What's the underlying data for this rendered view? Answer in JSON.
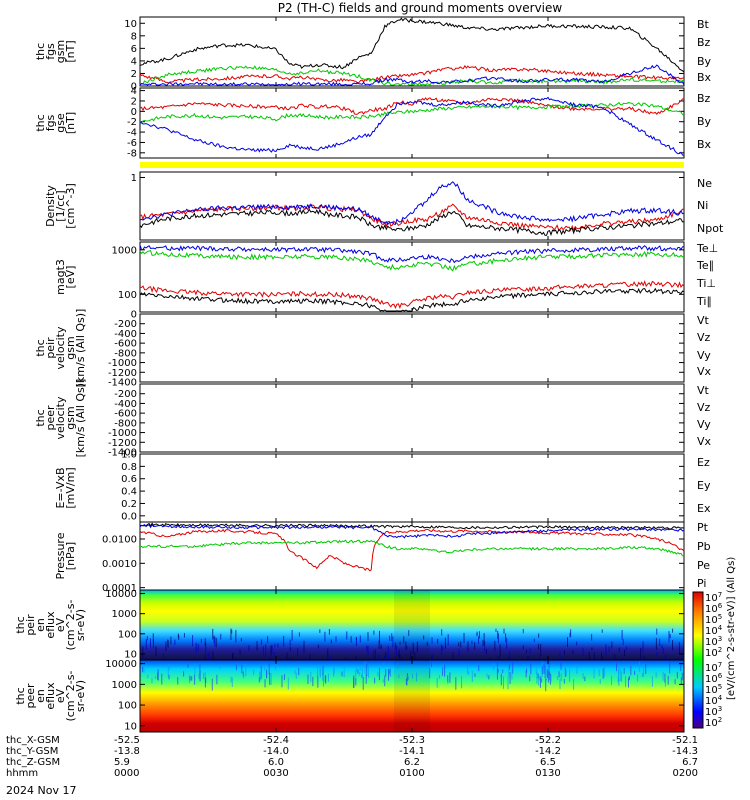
{
  "title": "P2 (TH-C) fields and ground moments overview",
  "date_label": "2024 Nov 17",
  "colors": {
    "black": "#000000",
    "red": "#e00000",
    "green": "#00c800",
    "blue": "#0000e0",
    "yellow": "#ffff00"
  },
  "chart_data": [
    {
      "id": "fgs",
      "type": "line",
      "ylabel_lines": [
        "thc",
        "fgs",
        "gsm",
        "[nT]"
      ],
      "ylim": [
        0,
        11
      ],
      "y_ticks": [
        "10",
        "8",
        "6",
        "4",
        "2",
        "0"
      ],
      "y_tick_values": [
        10,
        8,
        6,
        4,
        2,
        0
      ],
      "x_hours": [
        0,
        0.1,
        0.2,
        0.3,
        0.4,
        0.5,
        0.55,
        0.6,
        0.65,
        0.7,
        0.75,
        0.8,
        0.85,
        0.9,
        0.95,
        1.0,
        1.05,
        1.1,
        1.2,
        1.3,
        1.4,
        1.5,
        1.6,
        1.7,
        1.8,
        1.9,
        2.0
      ],
      "series": [
        {
          "name": "Bt",
          "color": "black",
          "values": [
            3.5,
            4.3,
            5.8,
            6.5,
            6.5,
            5.8,
            3.5,
            3.0,
            3.4,
            3.2,
            3.0,
            4.5,
            5.2,
            9.5,
            10.6,
            10.4,
            10.2,
            10.0,
            9.3,
            9.0,
            9.3,
            9.6,
            9.5,
            9.4,
            9.2,
            6.0,
            2.3
          ]
        },
        {
          "name": "Bz",
          "color": "red",
          "values": [
            1.8,
            0.7,
            1.0,
            1.2,
            1.5,
            1.6,
            1.2,
            1.4,
            1.0,
            0.9,
            1.0,
            0.6,
            1.0,
            1.4,
            1.6,
            1.8,
            2.0,
            2.6,
            3.0,
            2.5,
            2.7,
            2.4,
            2.0,
            1.8,
            1.5,
            1.3,
            1.2
          ]
        },
        {
          "name": "By",
          "color": "green",
          "values": [
            0.3,
            1.8,
            2.3,
            2.8,
            3.0,
            2.5,
            2.0,
            2.0,
            2.5,
            2.2,
            2.0,
            1.6,
            1.0,
            0.4,
            0.2,
            0.3,
            0.3,
            0.4,
            0.8,
            0.5,
            0.9,
            0.7,
            0.8,
            0.6,
            1.0,
            0.8,
            0.7
          ]
        },
        {
          "name": "Bx",
          "color": "blue",
          "values": [
            0.2,
            0.3,
            0.4,
            0.2,
            0.3,
            0.2,
            0.2,
            0.4,
            0.3,
            0.3,
            0.2,
            0.3,
            0.4,
            1.0,
            1.0,
            0.6,
            0.8,
            0.6,
            0.8,
            1.3,
            0.7,
            1.0,
            1.0,
            0.6,
            2.0,
            3.2,
            0.2
          ]
        }
      ],
      "legend": [
        "Bt",
        "Bz",
        "By",
        "Bx"
      ]
    },
    {
      "id": "fgs_gse",
      "type": "line",
      "ylabel_lines": [
        "thc",
        "fgs",
        "gse",
        "[nT]"
      ],
      "ylim": [
        -9,
        4.5
      ],
      "y_ticks": [
        "4",
        "2",
        "0",
        "-2",
        "-4",
        "-6",
        "-8"
      ],
      "y_tick_values": [
        4,
        2,
        0,
        -2,
        -4,
        -6,
        -8
      ],
      "x_hours": [
        0,
        0.1,
        0.2,
        0.3,
        0.4,
        0.5,
        0.55,
        0.6,
        0.65,
        0.7,
        0.75,
        0.8,
        0.85,
        0.9,
        0.95,
        1.0,
        1.05,
        1.1,
        1.2,
        1.3,
        1.4,
        1.5,
        1.6,
        1.7,
        1.8,
        1.9,
        2.0
      ],
      "series": [
        {
          "name": "Bz",
          "color": "red",
          "values": [
            0.5,
            0.8,
            1.5,
            1.2,
            1.0,
            0.8,
            0.5,
            1.2,
            0.8,
            1.0,
            0.5,
            -0.5,
            0.2,
            0.5,
            1.8,
            1.5,
            2.5,
            2.2,
            1.5,
            2.5,
            2.0,
            1.0,
            0.5,
            0.5,
            0.5,
            -0.5,
            2.2
          ]
        },
        {
          "name": "By",
          "color": "green",
          "values": [
            -2.0,
            -1.0,
            -0.8,
            -1.2,
            -1.0,
            -1.5,
            -0.7,
            -0.8,
            -1.0,
            -1.2,
            -1.0,
            -1.2,
            -1.0,
            -0.5,
            -0.2,
            0.0,
            0.2,
            0.5,
            0.8,
            1.0,
            0.7,
            0.9,
            1.0,
            1.2,
            1.5,
            1.0,
            -0.5
          ]
        },
        {
          "name": "Bx",
          "color": "blue",
          "values": [
            -2.0,
            -3.5,
            -5.5,
            -6.8,
            -7.5,
            -7.5,
            -6.5,
            -7.0,
            -7.2,
            -6.8,
            -6.0,
            -5.0,
            -4.5,
            -1.0,
            1.5,
            2.0,
            1.5,
            1.2,
            1.8,
            1.0,
            2.0,
            2.5,
            1.2,
            0.8,
            -2.5,
            -5.5,
            -8.5
          ]
        }
      ],
      "legend": [
        "Bz",
        "By",
        "Bx"
      ]
    },
    {
      "id": "density",
      "type": "line",
      "log_scale": true,
      "ylabel_lines": [
        "Density",
        "[1/cc]",
        "[cm^-3]"
      ],
      "ylim": [
        0.05,
        1.3
      ],
      "y_ticks": [
        "1"
      ],
      "y_tick_values": [
        1
      ],
      "x_hours": [
        0,
        0.1,
        0.2,
        0.3,
        0.4,
        0.5,
        0.55,
        0.6,
        0.65,
        0.7,
        0.75,
        0.8,
        0.85,
        0.9,
        0.95,
        1.0,
        1.05,
        1.1,
        1.15,
        1.2,
        1.3,
        1.4,
        1.5,
        1.6,
        1.7,
        1.8,
        1.9,
        2.0
      ],
      "series": [
        {
          "name": "Ne",
          "color": "red",
          "values": [
            0.15,
            0.17,
            0.2,
            0.22,
            0.23,
            0.24,
            0.23,
            0.24,
            0.25,
            0.23,
            0.22,
            0.21,
            0.14,
            0.11,
            0.11,
            0.13,
            0.13,
            0.18,
            0.25,
            0.15,
            0.12,
            0.1,
            0.09,
            0.09,
            0.11,
            0.12,
            0.13,
            0.2
          ]
        },
        {
          "name": "Ni",
          "color": "black",
          "values": [
            0.1,
            0.14,
            0.16,
            0.17,
            0.18,
            0.19,
            0.18,
            0.19,
            0.2,
            0.17,
            0.16,
            0.15,
            0.1,
            0.09,
            0.08,
            0.09,
            0.1,
            0.14,
            0.2,
            0.1,
            0.09,
            0.08,
            0.07,
            0.08,
            0.09,
            0.1,
            0.11,
            0.13
          ]
        },
        {
          "name": "Npot",
          "color": "blue",
          "values": [
            0.14,
            0.17,
            0.21,
            0.23,
            0.24,
            0.25,
            0.24,
            0.25,
            0.26,
            0.24,
            0.23,
            0.22,
            0.15,
            0.12,
            0.12,
            0.2,
            0.3,
            0.6,
            0.8,
            0.35,
            0.2,
            0.15,
            0.13,
            0.14,
            0.17,
            0.2,
            0.21,
            0.18
          ]
        }
      ],
      "legend": [
        "Ne",
        "Ni",
        "Npot"
      ]
    },
    {
      "id": "temperature",
      "type": "line",
      "log_scale": true,
      "ylabel_lines": [
        "magt3",
        "[eV]"
      ],
      "ylim": [
        40,
        1500
      ],
      "y_ticks": [
        "1000",
        "100"
      ],
      "y_tick_values": [
        1000,
        100
      ],
      "x_hours": [
        0,
        0.1,
        0.2,
        0.3,
        0.4,
        0.5,
        0.55,
        0.6,
        0.65,
        0.7,
        0.75,
        0.8,
        0.85,
        0.9,
        0.95,
        1.0,
        1.05,
        1.1,
        1.15,
        1.2,
        1.3,
        1.4,
        1.5,
        1.6,
        1.7,
        1.8,
        1.9,
        2.0
      ],
      "series": [
        {
          "name": "Te⊥",
          "color": "red",
          "values": [
            140,
            120,
            110,
            105,
            100,
            100,
            100,
            105,
            100,
            100,
            95,
            90,
            80,
            60,
            55,
            65,
            80,
            90,
            85,
            110,
            120,
            130,
            140,
            150,
            160,
            170,
            175,
            160
          ]
        },
        {
          "name": "Te∥",
          "color": "black",
          "values": [
            100,
            90,
            80,
            75,
            70,
            70,
            70,
            72,
            70,
            70,
            65,
            62,
            55,
            40,
            38,
            45,
            55,
            60,
            58,
            75,
            85,
            95,
            100,
            110,
            115,
            120,
            120,
            110
          ]
        },
        {
          "name": "Ti⊥",
          "color": "blue",
          "values": [
            1150,
            1100,
            1100,
            1050,
            1050,
            1000,
            1000,
            1050,
            1000,
            1000,
            950,
            900,
            800,
            600,
            580,
            650,
            700,
            650,
            560,
            680,
            800,
            900,
            950,
            1000,
            1050,
            1100,
            1100,
            1050
          ]
        },
        {
          "name": "Ti∥",
          "color": "green",
          "values": [
            900,
            800,
            750,
            700,
            700,
            680,
            700,
            720,
            700,
            700,
            650,
            620,
            560,
            420,
            400,
            450,
            500,
            450,
            380,
            480,
            560,
            650,
            700,
            720,
            760,
            800,
            800,
            750
          ]
        }
      ],
      "legend": [
        "Te⊥",
        "Te∥",
        "Ti⊥",
        "Ti∥"
      ]
    },
    {
      "id": "peir_velocity",
      "type": "line",
      "ylabel_lines": [
        "thc",
        "peir",
        "velocity",
        "gsm",
        "[km/s (All Qs)]"
      ],
      "ylim": [
        -1400,
        0
      ],
      "y_ticks": [
        "0",
        "-200",
        "-400",
        "-600",
        "-800",
        "-1000",
        "-1200",
        "-1400"
      ],
      "y_tick_values": [
        0,
        -200,
        -400,
        -600,
        -800,
        -1000,
        -1200,
        -1400
      ],
      "series": [],
      "legend": [
        "Vt",
        "Vz",
        "Vy",
        "Vx"
      ]
    },
    {
      "id": "peer_velocity",
      "type": "line",
      "ylabel_lines": [
        "thc",
        "peer",
        "velocity",
        "gsm",
        "[km/s (All Qs)]"
      ],
      "ylim": [
        -1400,
        0
      ],
      "y_ticks": [
        "-200",
        "-400",
        "-600",
        "-800",
        "-1000",
        "-1200",
        "-1400"
      ],
      "y_tick_values": [
        -200,
        -400,
        -600,
        -800,
        -1000,
        -1200,
        -1400
      ],
      "series": [],
      "legend": [
        "Vt",
        "Vz",
        "Vy",
        "Vx"
      ]
    },
    {
      "id": "efield",
      "type": "line",
      "ylabel_lines": [
        "E=-VxB",
        "[mV/m]"
      ],
      "ylim": [
        -0.1,
        1.0
      ],
      "y_ticks": [
        "1.0",
        "0.8",
        "0.6",
        "0.4",
        "0.2",
        "0.0"
      ],
      "y_tick_values": [
        1.0,
        0.8,
        0.6,
        0.4,
        0.2,
        0.0
      ],
      "series": [],
      "legend": [
        "Ez",
        "Ey",
        "Ex"
      ]
    },
    {
      "id": "pressure",
      "type": "line",
      "log_scale": true,
      "ylabel_lines": [
        "Pressure",
        "[nPa]"
      ],
      "ylim": [
        8e-05,
        0.05
      ],
      "y_ticks": [
        "0.0100",
        "0.0010",
        "0.0001"
      ],
      "y_tick_values": [
        0.01,
        0.001,
        0.0001
      ],
      "x_hours": [
        0,
        0.1,
        0.2,
        0.3,
        0.4,
        0.5,
        0.55,
        0.6,
        0.65,
        0.7,
        0.75,
        0.8,
        0.85,
        0.9,
        0.95,
        1.0,
        1.05,
        1.1,
        1.15,
        1.2,
        1.3,
        1.4,
        1.5,
        1.6,
        1.7,
        1.8,
        1.9,
        2.0
      ],
      "series": [
        {
          "name": "Pt",
          "color": "black",
          "values": [
            0.04,
            0.038,
            0.037,
            0.037,
            0.036,
            0.036,
            0.036,
            0.036,
            0.036,
            0.035,
            0.035,
            0.035,
            0.034,
            0.033,
            0.033,
            0.032,
            0.032,
            0.032,
            0.03,
            0.03,
            0.03,
            0.031,
            0.031,
            0.031,
            0.03,
            0.03,
            0.029,
            0.028
          ]
        },
        {
          "name": "Pb",
          "color": "red",
          "values": [
            0.02,
            0.012,
            0.02,
            0.022,
            0.02,
            0.016,
            0.003,
            0.0015,
            0.0006,
            0.002,
            0.001,
            0.0007,
            0.0005,
            0.018,
            0.02,
            0.022,
            0.023,
            0.022,
            0.021,
            0.022,
            0.02,
            0.02,
            0.018,
            0.017,
            0.016,
            0.015,
            0.01,
            0.003
          ]
        },
        {
          "name": "Pe",
          "color": "green",
          "values": [
            0.005,
            0.005,
            0.005,
            0.006,
            0.007,
            0.007,
            0.007,
            0.007,
            0.0075,
            0.0075,
            0.008,
            0.008,
            0.008,
            0.005,
            0.004,
            0.004,
            0.004,
            0.003,
            0.003,
            0.0035,
            0.004,
            0.004,
            0.004,
            0.004,
            0.004,
            0.0045,
            0.004,
            0.0022
          ]
        },
        {
          "name": "Pi",
          "color": "blue",
          "values": [
            0.035,
            0.033,
            0.032,
            0.03,
            0.03,
            0.03,
            0.03,
            0.03,
            0.031,
            0.031,
            0.03,
            0.03,
            0.03,
            0.014,
            0.012,
            0.013,
            0.014,
            0.015,
            0.012,
            0.016,
            0.018,
            0.02,
            0.022,
            0.024,
            0.025,
            0.025,
            0.024,
            0.023
          ]
        }
      ],
      "legend": [
        "Pt",
        "Pb",
        "Pe",
        "Pi"
      ]
    },
    {
      "id": "peir_eflux",
      "type": "heatmap",
      "log_scale": true,
      "ylabel_lines": [
        "thc",
        "peir",
        "en",
        "eflux",
        "eV",
        "(cm^2-s-",
        "sr-eV)"
      ],
      "ylim": [
        5,
        15000
      ],
      "y_ticks": [
        "10000",
        "1000",
        "100",
        "10"
      ],
      "y_tick_values": [
        10000,
        1000,
        100,
        10
      ]
    },
    {
      "id": "peer_eflux",
      "type": "heatmap",
      "log_scale": true,
      "ylabel_lines": [
        "thc",
        "peer",
        "en",
        "eflux",
        "eV",
        "(cm^2-s-",
        "sr-eV)"
      ],
      "ylim": [
        5,
        15000
      ],
      "y_ticks": [
        "10000",
        "1000",
        "100",
        "10"
      ],
      "y_tick_values": [
        10000,
        1000,
        100,
        10
      ]
    }
  ],
  "colorbar": {
    "label": "[eV/(cm^2-s-str-eV)] (All Qs)",
    "ticks": [
      "10^7",
      "10^6",
      "10^5",
      "10^4",
      "10^3",
      "10^2",
      "10^7",
      "10^6",
      "10^5",
      "10^4",
      "10^3",
      "10^2"
    ]
  },
  "x_axis": {
    "row_labels": [
      "thc_X-GSM",
      "thc_Y-GSM",
      "thc_Z-GSM",
      "hhmm"
    ],
    "columns": [
      [
        "-52.5",
        "-13.8",
        "5.9",
        "0000"
      ],
      [
        "-52.4",
        "-14.0",
        "6.0",
        "0030"
      ],
      [
        "-52.3",
        "-14.1",
        "6.2",
        "0100"
      ],
      [
        "-52.2",
        "-14.2",
        "6.5",
        "0130"
      ],
      [
        "-52.1",
        "-14.3",
        "6.7",
        "0200"
      ]
    ]
  }
}
